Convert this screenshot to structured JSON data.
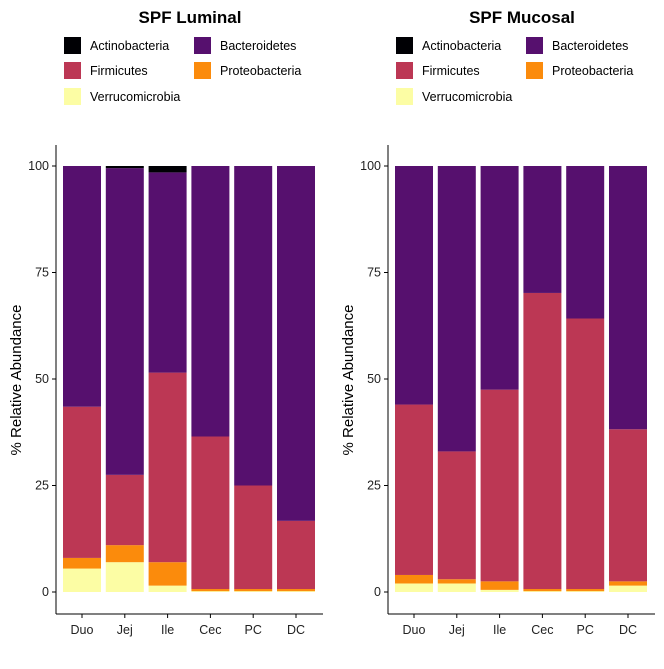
{
  "chart_data": [
    {
      "type": "bar",
      "stacked": true,
      "title": "SPF Luminal",
      "ylabel": "% Relative Abundance",
      "xlabel": "",
      "ylim": [
        0,
        100
      ],
      "yticks": [
        0,
        25,
        50,
        75,
        100
      ],
      "categories": [
        "Duo",
        "Jej",
        "Ile",
        "Cec",
        "PC",
        "DC"
      ],
      "legend_position": "top",
      "series": [
        {
          "name": "Verrucomicrobia",
          "color": "#FCFDA4",
          "values": [
            5.5,
            7,
            1.5,
            0.2,
            0.2,
            0.2
          ]
        },
        {
          "name": "Proteobacteria",
          "color": "#FB8B0C",
          "values": [
            2.5,
            4,
            5.5,
            0.5,
            0.5,
            0.5
          ]
        },
        {
          "name": "Firmicutes",
          "color": "#BC3754",
          "values": [
            35.5,
            16.5,
            44.5,
            35.8,
            24.3,
            16
          ]
        },
        {
          "name": "Bacteroidetes",
          "color": "#56106E",
          "values": [
            56.5,
            72,
            47,
            63.5,
            75,
            83.3
          ]
        },
        {
          "name": "Actinobacteria",
          "color": "#000004",
          "values": [
            0,
            0.5,
            1.5,
            0,
            0,
            0
          ]
        }
      ]
    },
    {
      "type": "bar",
      "stacked": true,
      "title": "SPF Mucosal",
      "ylabel": "% Relative Abundance",
      "xlabel": "",
      "ylim": [
        0,
        100
      ],
      "yticks": [
        0,
        25,
        50,
        75,
        100
      ],
      "categories": [
        "Duo",
        "Jej",
        "Ile",
        "Cec",
        "PC",
        "DC"
      ],
      "legend_position": "top",
      "series": [
        {
          "name": "Verrucomicrobia",
          "color": "#FCFDA4",
          "values": [
            2,
            2,
            0.5,
            0.2,
            0.2,
            1.5
          ]
        },
        {
          "name": "Proteobacteria",
          "color": "#FB8B0C",
          "values": [
            2,
            1,
            2,
            0.5,
            0.5,
            1
          ]
        },
        {
          "name": "Firmicutes",
          "color": "#BC3754",
          "values": [
            40,
            30,
            45,
            69.5,
            63.5,
            35.7
          ]
        },
        {
          "name": "Bacteroidetes",
          "color": "#56106E",
          "values": [
            56,
            67,
            52.5,
            29.8,
            35.8,
            61.8
          ]
        },
        {
          "name": "Actinobacteria",
          "color": "#000004",
          "values": [
            0,
            0,
            0,
            0,
            0,
            0
          ]
        }
      ]
    }
  ],
  "legend": {
    "items": [
      {
        "name": "Actinobacteria",
        "color": "#000004"
      },
      {
        "name": "Bacteroidetes",
        "color": "#56106E"
      },
      {
        "name": "Firmicutes",
        "color": "#BC3754"
      },
      {
        "name": "Proteobacteria",
        "color": "#FB8B0C"
      },
      {
        "name": "Verrucomicrobia",
        "color": "#FCFDA4"
      }
    ]
  }
}
